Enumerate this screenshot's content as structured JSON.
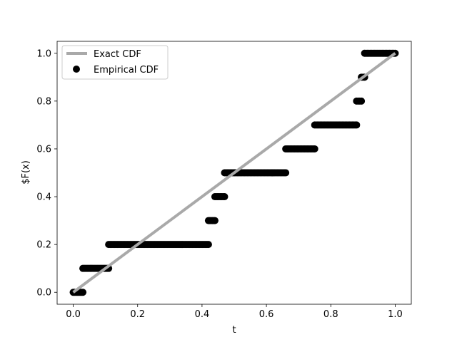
{
  "chart_data": {
    "type": "scatter",
    "title": "",
    "xlabel": "t",
    "ylabel": "$F(x)",
    "xlim": [
      -0.05,
      1.05
    ],
    "ylim": [
      -0.05,
      1.05
    ],
    "xticks": [
      0.0,
      0.2,
      0.4,
      0.6,
      0.8,
      1.0
    ],
    "yticks": [
      0.0,
      0.2,
      0.4,
      0.6,
      0.8,
      1.0
    ],
    "xtick_labels": [
      "0.0",
      "0.2",
      "0.4",
      "0.6",
      "0.8",
      "1.0"
    ],
    "ytick_labels": [
      "0.0",
      "0.2",
      "0.4",
      "0.6",
      "0.8",
      "1.0"
    ],
    "grid": false,
    "legend_position": "top-left",
    "legend": [
      {
        "label": "Exact CDF",
        "kind": "line",
        "color": "#a9a9a9"
      },
      {
        "label": "Empirical CDF",
        "kind": "marker",
        "color": "#000000"
      }
    ],
    "series": [
      {
        "name": "Exact CDF",
        "kind": "line",
        "color": "#a9a9a9",
        "x": [
          0.0,
          1.0
        ],
        "y": [
          0.0,
          1.0
        ]
      },
      {
        "name": "Empirical CDF",
        "kind": "step-markers",
        "color": "#000000",
        "steps": [
          {
            "x_start": 0.0,
            "x_end": 0.03,
            "y": 0.0
          },
          {
            "x_start": 0.03,
            "x_end": 0.11,
            "y": 0.1
          },
          {
            "x_start": 0.11,
            "x_end": 0.42,
            "y": 0.2
          },
          {
            "x_start": 0.42,
            "x_end": 0.44,
            "y": 0.3
          },
          {
            "x_start": 0.44,
            "x_end": 0.47,
            "y": 0.4
          },
          {
            "x_start": 0.47,
            "x_end": 0.66,
            "y": 0.5
          },
          {
            "x_start": 0.66,
            "x_end": 0.75,
            "y": 0.6
          },
          {
            "x_start": 0.75,
            "x_end": 0.88,
            "y": 0.7
          },
          {
            "x_start": 0.88,
            "x_end": 0.895,
            "y": 0.8
          },
          {
            "x_start": 0.895,
            "x_end": 0.905,
            "y": 0.9
          },
          {
            "x_start": 0.905,
            "x_end": 1.0,
            "y": 1.0
          }
        ]
      }
    ]
  }
}
